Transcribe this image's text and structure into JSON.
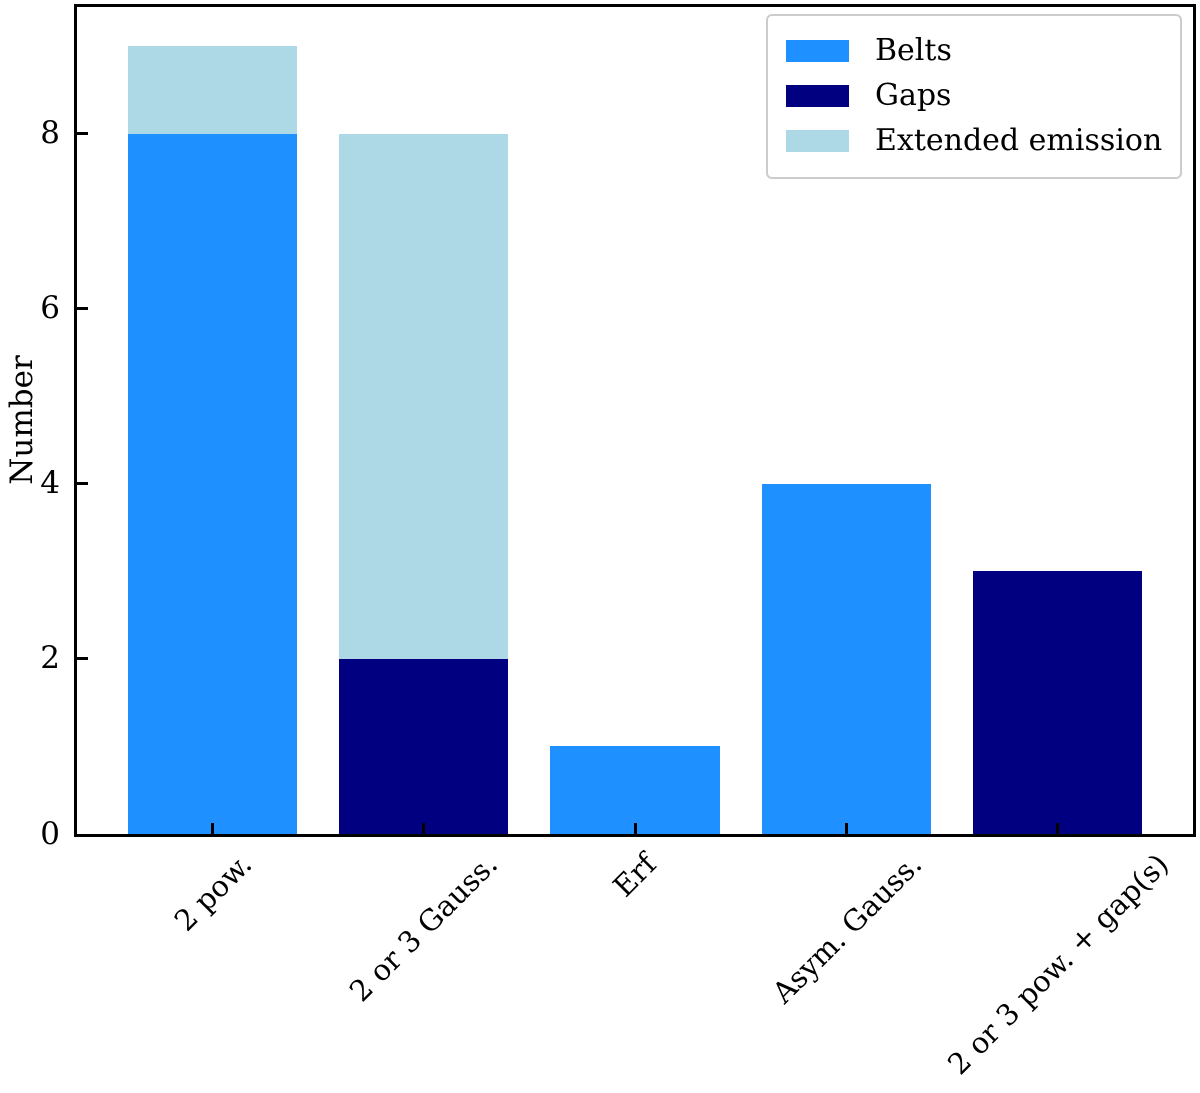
{
  "chart_data": {
    "type": "bar",
    "stacked": true,
    "title": "",
    "xlabel": "",
    "ylabel": "Number",
    "categories": [
      "2 pow.",
      "2 or 3 Gauss.",
      "Erf",
      "Asym. Gauss.",
      "2 or 3 pow. + gap(s)"
    ],
    "series": [
      {
        "name": "Belts",
        "color": "#1E90FF",
        "values": [
          8,
          0,
          1,
          4,
          0
        ]
      },
      {
        "name": "Gaps",
        "color": "#000080",
        "values": [
          0,
          2,
          0,
          0,
          3
        ]
      },
      {
        "name": "Extended emission",
        "color": "#ADD8E6",
        "values": [
          1,
          6,
          0,
          0,
          0
        ]
      }
    ],
    "bar_totals": [
      9,
      8,
      1,
      4,
      3
    ],
    "yticks": [
      0,
      2,
      4,
      6,
      8
    ],
    "ylim": [
      0,
      9.45
    ],
    "xlim": [
      -0.64,
      4.64
    ],
    "bar_width": 0.8,
    "grid": false,
    "legend": {
      "position": "upper right",
      "entries": [
        "Belts",
        "Gaps",
        "Extended emission"
      ]
    },
    "style": {
      "spine_color": "#000000",
      "tick_color": "#000000",
      "text_color": "#000000",
      "legend_border_color": "#cccccc",
      "background": "#ffffff",
      "tick_direction": "in"
    }
  }
}
